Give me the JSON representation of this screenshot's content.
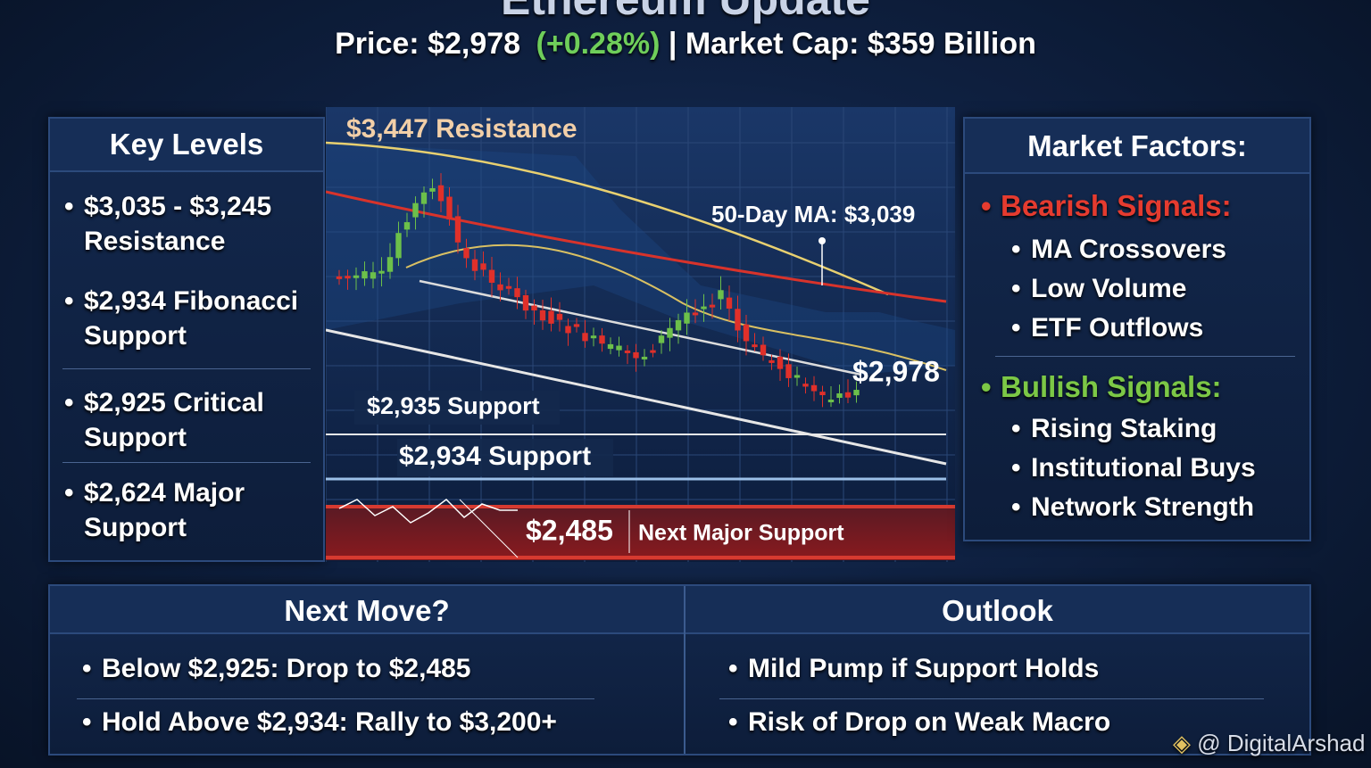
{
  "header": {
    "title": "Ethereum Update",
    "price_label": "Price:",
    "price": "$2,978",
    "change": "(+0.28%)",
    "separator": "|",
    "market_cap_label": "Market Cap:",
    "market_cap": "$359 Billion"
  },
  "key_levels": {
    "title": "Key Levels",
    "items": [
      [
        "$3,035 - $3,245",
        "Resistance"
      ],
      [
        "$2,934 Fibonacci",
        "Support"
      ],
      [
        "$2,925 Critical",
        "Support"
      ],
      [
        "$2,624 Major",
        "Support"
      ]
    ]
  },
  "chart": {
    "resistance": "$3,447 Resistance",
    "moving_average": "50-Day MA: $3,039",
    "current": "$2,978",
    "support_1": "$2,935 Support",
    "support_2": "$2,934 Support",
    "major_support_price": "$2,485",
    "major_support_label": "Next Major Support"
  },
  "market_factors": {
    "title": "Market Factors:",
    "bearish": {
      "title": "Bearish Signals:",
      "items": [
        "MA Crossovers",
        "Low Volume",
        "ETF Outflows"
      ]
    },
    "bullish": {
      "title": "Bullish Signals:",
      "items": [
        "Rising Staking",
        "Institutional Buys",
        "Network Strength"
      ]
    }
  },
  "next_move": {
    "title": "Next Move?",
    "items": [
      "Below $2,925: Drop to $2,485",
      "Hold Above $2,934: Rally to $3,200+"
    ]
  },
  "outlook": {
    "title": "Outlook",
    "items": [
      "Mild Pump if Support Holds",
      "Risk of Drop on Weak Macro"
    ]
  },
  "watermark": "@ DigitalArshad"
}
